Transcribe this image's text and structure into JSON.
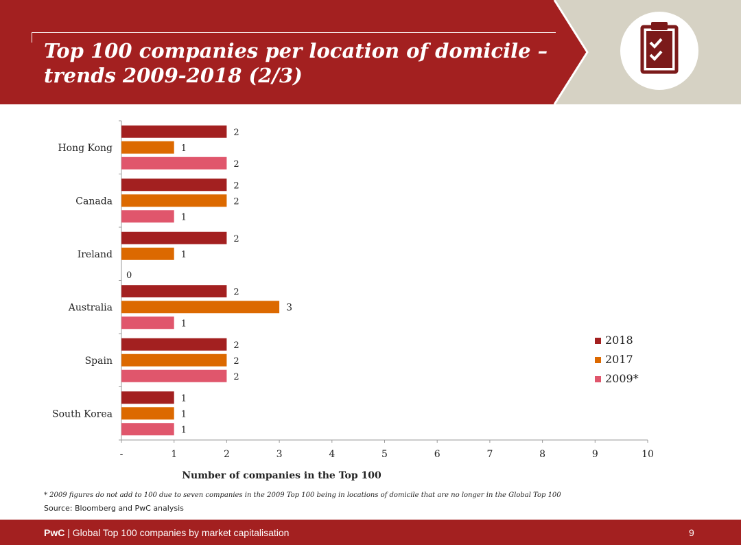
{
  "header": {
    "title_line1": "Top 100 companies per location of domicile –",
    "title_line2": "trends 2009-2018 (2/3)",
    "icon": "clipboard-checklist-icon"
  },
  "colors": {
    "brand_red": "#a32020",
    "band_grey": "#d6d2c4",
    "series_2018": "#a32020",
    "series_2017": "#dc6900",
    "series_2009": "#e0566c"
  },
  "chart_data": {
    "type": "bar",
    "orientation": "horizontal",
    "categories": [
      "Hong Kong",
      "Canada",
      "Ireland",
      "Australia",
      "Spain",
      "South Korea"
    ],
    "series": [
      {
        "name": "2018",
        "values": [
          2,
          2,
          2,
          2,
          2,
          1
        ]
      },
      {
        "name": "2017",
        "values": [
          1,
          2,
          1,
          3,
          2,
          1
        ]
      },
      {
        "name": "2009*",
        "values": [
          2,
          1,
          0,
          1,
          2,
          1
        ]
      }
    ],
    "xlabel": "Number of companies in the Top 100",
    "xlim": [
      0,
      10
    ],
    "x_tick_labels": [
      "-",
      "1",
      "2",
      "3",
      "4",
      "5",
      "6",
      "7",
      "8",
      "9",
      "10"
    ],
    "grid": false,
    "legend_position": "bottom-right",
    "data_labels": true
  },
  "footnote": "* 2009 figures do not add to 100 due to seven companies in the 2009 Top 100 being in locations of domicile that are no longer in the Global Top 100",
  "source": "Source: Bloomberg and PwC analysis",
  "footer": {
    "brand": "PwC",
    "separator": " | ",
    "text": "Global Top 100 companies by market capitalisation",
    "page_number": "9"
  }
}
